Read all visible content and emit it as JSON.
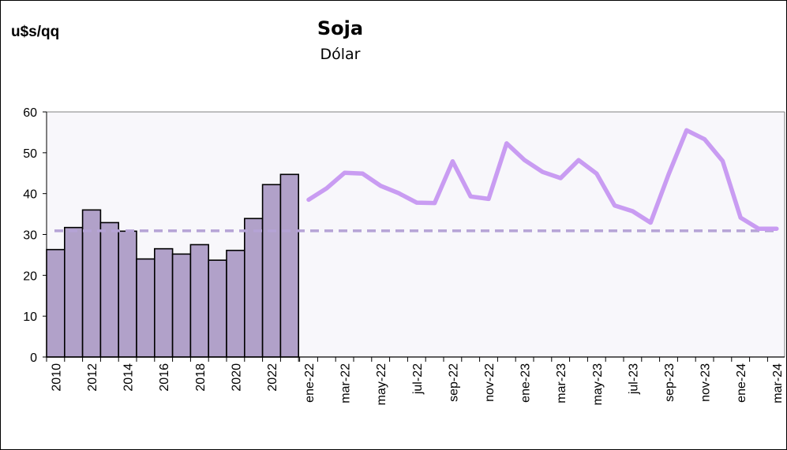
{
  "header": {
    "unit": "u$s/qq",
    "title": "Soja",
    "subtitle": "Dólar"
  },
  "chart_data": {
    "type": "bar+line",
    "title": "Soja",
    "subtitle": "Dólar",
    "ylabel": "u$s/qq",
    "ylim": [
      0,
      60
    ],
    "yticks": [
      0,
      10,
      20,
      30,
      40,
      50,
      60
    ],
    "grid": false,
    "legend": "none",
    "colors": {
      "bar_fill": "#b1a1c9",
      "bar_stroke": "#000000",
      "line": "#c99cf2",
      "reference": "#b5a3d6",
      "plot_bg": "#f8f7fb"
    },
    "annual": {
      "years": [
        "2010",
        "2011",
        "2012",
        "2013",
        "2014",
        "2015",
        "2016",
        "2017",
        "2018",
        "2019",
        "2020",
        "2021",
        "2022",
        "2023"
      ],
      "values": [
        26.3,
        31.7,
        36.0,
        32.9,
        30.8,
        24.0,
        26.5,
        25.2,
        27.5,
        23.7,
        26.1,
        33.9,
        42.2,
        44.7
      ]
    },
    "annual_tick_labels": [
      "2010",
      "2012",
      "2014",
      "2016",
      "2018",
      "2020",
      "2022"
    ],
    "monthly": {
      "months": [
        "ene-22",
        "feb-22",
        "mar-22",
        "abr-22",
        "may-22",
        "jun-22",
        "jul-22",
        "ago-22",
        "sep-22",
        "oct-22",
        "nov-22",
        "dic-22",
        "ene-23",
        "feb-23",
        "mar-23",
        "abr-23",
        "may-23",
        "jun-23",
        "jul-23",
        "ago-23",
        "sep-23",
        "oct-23",
        "nov-23",
        "dic-23",
        "ene-24",
        "feb-24",
        "mar-24"
      ],
      "values": [
        38.5,
        41.3,
        45.1,
        44.9,
        41.9,
        40.1,
        37.8,
        37.7,
        47.9,
        39.3,
        38.7,
        52.3,
        48.2,
        45.3,
        43.8,
        48.2,
        44.9,
        37.1,
        35.7,
        32.9,
        44.7,
        55.5,
        53.3,
        48.0,
        34.1,
        31.4,
        31.4
      ]
    },
    "monthly_tick_labels": [
      "ene-22",
      "mar-22",
      "may-22",
      "jul-22",
      "sep-22",
      "nov-22",
      "ene-23",
      "mar-23",
      "may-23",
      "jul-23",
      "sep-23",
      "nov-23",
      "ene-24",
      "mar-24"
    ],
    "reference_value": 30.9
  }
}
